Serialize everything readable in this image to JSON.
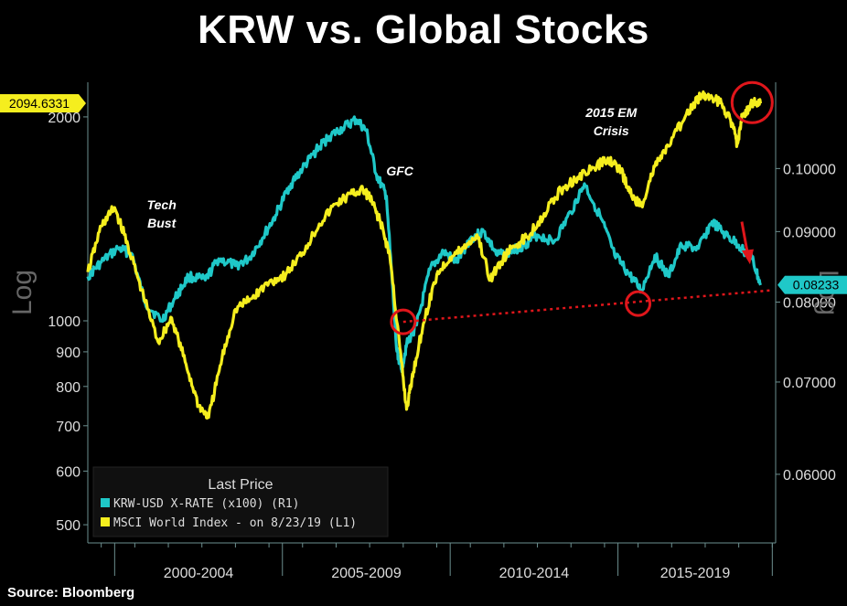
{
  "title": "KRW vs. Global Stocks",
  "source": "Source: Bloomberg",
  "colors": {
    "krw": "#1fc8c8",
    "msci": "#f5ee1e",
    "annotation": "#e0161b",
    "background": "#000000",
    "axis": "#6c8f8f"
  },
  "chart_data": {
    "type": "line",
    "x_period_labels": [
      "2000-2004",
      "2005-2009",
      "2010-2014",
      "2015-2019"
    ],
    "x_range": [
      1999.6,
      2020.1
    ],
    "left_axis": {
      "label": "Log",
      "scale": "log",
      "range": [
        470,
        2250
      ],
      "ticks": [
        500,
        600,
        700,
        800,
        900,
        1000,
        2000
      ]
    },
    "right_axis": {
      "label": "Log",
      "scale": "log",
      "range": [
        0.0535,
        0.1155
      ],
      "ticks": [
        "0.06000",
        "0.07000",
        "0.08000",
        "0.09000",
        "0.10000"
      ],
      "tick_values": [
        0.06,
        0.07,
        0.08,
        0.09,
        0.1
      ]
    },
    "last_values": {
      "msci": "2094.6331",
      "krw": "0.08233"
    },
    "legend": {
      "title": "Last Price",
      "position": "bottom-left"
    },
    "series": [
      {
        "name": "KRW-USD X-RATE (x100) (R1)",
        "axis": "right",
        "color": "#1fc8c8",
        "x": [
          1999.6,
          2000.0,
          2000.5,
          2000.9,
          2001.3,
          2001.8,
          2002.2,
          2002.6,
          2003.1,
          2003.5,
          2004.0,
          2004.4,
          2004.8,
          2005.2,
          2005.6,
          2006.0,
          2006.4,
          2006.8,
          2007.2,
          2007.6,
          2007.9,
          2008.2,
          2008.5,
          2008.8,
          2008.95,
          2009.1,
          2009.4,
          2009.8,
          2010.2,
          2010.6,
          2011.0,
          2011.4,
          2011.8,
          2012.2,
          2012.6,
          2013.0,
          2013.5,
          2014.0,
          2014.4,
          2014.9,
          2015.3,
          2015.7,
          2016.1,
          2016.5,
          2016.9,
          2017.3,
          2017.8,
          2018.2,
          2018.6,
          2019.0,
          2019.4,
          2019.65
        ],
        "y": [
          0.0835,
          0.0855,
          0.0875,
          0.0868,
          0.08,
          0.0775,
          0.0805,
          0.0835,
          0.083,
          0.086,
          0.085,
          0.086,
          0.089,
          0.0925,
          0.097,
          0.1,
          0.103,
          0.1055,
          0.107,
          0.1085,
          0.1065,
          0.099,
          0.0955,
          0.074,
          0.0715,
          0.0745,
          0.077,
          0.0845,
          0.087,
          0.0855,
          0.089,
          0.09,
          0.0865,
          0.087,
          0.088,
          0.0895,
          0.0885,
          0.093,
          0.0975,
          0.092,
          0.0865,
          0.084,
          0.0815,
          0.0865,
          0.0835,
          0.088,
          0.0875,
          0.0915,
          0.0895,
          0.088,
          0.086,
          0.0823
        ]
      },
      {
        "name": "MSCI World Index -  on 8/23/19 (L1)",
        "axis": "left",
        "color": "#f5ee1e",
        "x": [
          1999.6,
          2000.0,
          2000.4,
          2000.8,
          2001.2,
          2001.7,
          2002.1,
          2002.5,
          2002.9,
          2003.2,
          2003.6,
          2004.0,
          2004.5,
          2005.0,
          2005.5,
          2006.0,
          2006.5,
          2007.0,
          2007.5,
          2007.8,
          2008.0,
          2008.3,
          2008.6,
          2008.9,
          2009.1,
          2009.3,
          2009.6,
          2010.0,
          2010.4,
          2010.8,
          2011.2,
          2011.6,
          2011.9,
          2012.3,
          2012.7,
          2013.2,
          2013.7,
          2014.2,
          2014.7,
          2015.1,
          2015.5,
          2015.8,
          2016.1,
          2016.5,
          2016.9,
          2017.4,
          2017.9,
          2018.2,
          2018.5,
          2018.8,
          2018.95,
          2019.1,
          2019.4,
          2019.65
        ],
        "y": [
          1180,
          1380,
          1470,
          1290,
          1110,
          930,
          1010,
          870,
          750,
          720,
          880,
          1040,
          1080,
          1140,
          1170,
          1260,
          1390,
          1490,
          1540,
          1560,
          1520,
          1410,
          1250,
          910,
          740,
          840,
          990,
          1170,
          1240,
          1280,
          1340,
          1150,
          1220,
          1290,
          1330,
          1440,
          1560,
          1630,
          1680,
          1740,
          1660,
          1530,
          1480,
          1690,
          1810,
          2000,
          2160,
          2140,
          2090,
          1960,
          1820,
          2000,
          2100,
          2094
        ]
      }
    ],
    "annotations": [
      "Tech Bust",
      "GFC",
      "2015 EM Crisis"
    ],
    "trendline": {
      "from": {
        "x": 2009.0,
        "krw": 0.0774
      },
      "to": {
        "x": 2020.0,
        "krw": 0.0816
      },
      "style": "dotted"
    },
    "highlight_circles": [
      {
        "x": 2009.0,
        "krw": 0.0774
      },
      {
        "x": 2016.0,
        "krw": 0.0798
      },
      {
        "x": 2019.4,
        "msci": 2100
      }
    ]
  }
}
